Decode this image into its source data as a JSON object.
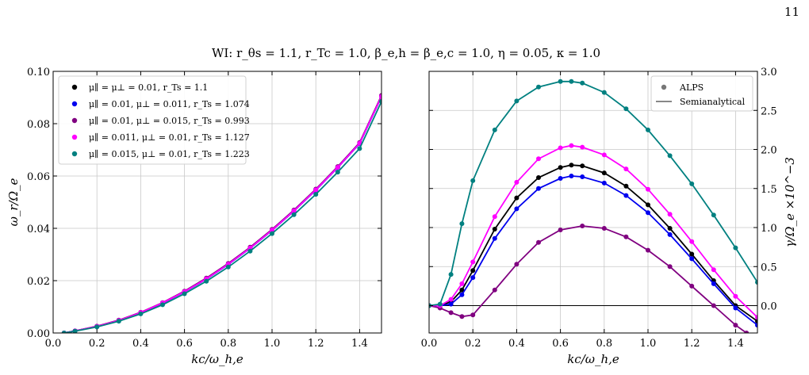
{
  "page_number": "11",
  "figure_title": "WI: r_θs = 1.1, r_Tc = 1.0, β_e,h = β_e,c = 1.0, η = 0.05, κ = 1.0",
  "colors": {
    "black": "#000000",
    "blue": "#0000ee",
    "purple": "#800080",
    "magenta": "#ff00ff",
    "teal": "#008080",
    "grid": "#c8c8c8",
    "axis": "#000000"
  },
  "chart_data": [
    {
      "type": "line",
      "panel": "left",
      "xlabel": "kc/ω_h,e",
      "ylabel": "ω_r/Ω_e",
      "xlim": [
        0.0,
        1.5
      ],
      "ylim": [
        0.0,
        0.1
      ],
      "xticks": [
        0.0,
        0.2,
        0.4,
        0.6,
        0.8,
        1.0,
        1.2,
        1.4
      ],
      "xtick_labels": [
        "0.0",
        "0.2",
        "0.4",
        "0.6",
        "0.8",
        "1.0",
        "1.2",
        "1.4"
      ],
      "yticks": [
        0.0,
        0.02,
        0.04,
        0.06,
        0.08,
        0.1
      ],
      "ytick_labels": [
        "0.00",
        "0.02",
        "0.04",
        "0.06",
        "0.08",
        "0.10"
      ],
      "grid": true,
      "legend_position": "top-left",
      "series": [
        {
          "name": "μ∥ = μ⊥ = 0.01, r_Ts = 1.1",
          "color": "#000000",
          "x": [
            0.05,
            0.1,
            0.2,
            0.3,
            0.4,
            0.5,
            0.6,
            0.7,
            0.8,
            0.9,
            1.0,
            1.1,
            1.2,
            1.3,
            1.4,
            1.5
          ],
          "y": [
            0.0,
            0.0008,
            0.0025,
            0.0048,
            0.0078,
            0.0115,
            0.0158,
            0.0207,
            0.0263,
            0.0325,
            0.0393,
            0.0467,
            0.0547,
            0.0633,
            0.0725,
            0.0905
          ]
        },
        {
          "name": "μ∥ = 0.01, μ⊥ = 0.011, r_Ts = 1.074",
          "color": "#0000ee",
          "x": [
            0.05,
            0.1,
            0.2,
            0.3,
            0.4,
            0.5,
            0.6,
            0.7,
            0.8,
            0.9,
            1.0,
            1.1,
            1.2,
            1.3,
            1.4,
            1.5
          ],
          "y": [
            0.0,
            0.0008,
            0.0025,
            0.0047,
            0.0077,
            0.0114,
            0.0157,
            0.0206,
            0.0262,
            0.0324,
            0.0392,
            0.0466,
            0.0546,
            0.0632,
            0.0724,
            0.0903
          ]
        },
        {
          "name": "μ∥ = 0.01, μ⊥ = 0.015, r_Ts = 0.993",
          "color": "#800080",
          "x": [
            0.05,
            0.1,
            0.2,
            0.3,
            0.4,
            0.5,
            0.6,
            0.7,
            0.8,
            0.9,
            1.0,
            1.1,
            1.2,
            1.3,
            1.4,
            1.5
          ],
          "y": [
            0.0,
            0.0008,
            0.0026,
            0.0049,
            0.0079,
            0.0116,
            0.016,
            0.021,
            0.0266,
            0.0328,
            0.0396,
            0.047,
            0.055,
            0.0636,
            0.0728,
            0.0908
          ]
        },
        {
          "name": "μ∥ = 0.011, μ⊥ = 0.01, r_Ts = 1.127",
          "color": "#ff00ff",
          "x": [
            0.05,
            0.1,
            0.2,
            0.3,
            0.4,
            0.5,
            0.6,
            0.7,
            0.8,
            0.9,
            1.0,
            1.1,
            1.2,
            1.3,
            1.4,
            1.5
          ],
          "y": [
            0.0,
            0.0008,
            0.0025,
            0.0048,
            0.0078,
            0.0115,
            0.0158,
            0.0207,
            0.0263,
            0.0325,
            0.0393,
            0.0467,
            0.0547,
            0.0633,
            0.0725,
            0.0904
          ]
        },
        {
          "name": "μ∥ = 0.015, μ⊥ = 0.01, r_Ts = 1.223",
          "color": "#008080",
          "x": [
            0.05,
            0.1,
            0.2,
            0.3,
            0.4,
            0.5,
            0.6,
            0.7,
            0.8,
            0.9,
            1.0,
            1.1,
            1.2,
            1.3,
            1.4,
            1.5
          ],
          "y": [
            0.0,
            0.0007,
            0.0023,
            0.0045,
            0.0073,
            0.0108,
            0.015,
            0.0198,
            0.0252,
            0.0313,
            0.038,
            0.0452,
            0.053,
            0.0615,
            0.0705,
            0.0885
          ]
        }
      ]
    },
    {
      "type": "line",
      "panel": "right",
      "xlabel": "kc/ω_h,e",
      "ylabel": "γ/Ω_e ×10^−3",
      "xlim": [
        0.0,
        1.5
      ],
      "ylim": [
        -0.35,
        3.0
      ],
      "xticks": [
        0.0,
        0.2,
        0.4,
        0.6,
        0.8,
        1.0,
        1.2,
        1.4
      ],
      "xtick_labels": [
        "0.0",
        "0.2",
        "0.4",
        "0.6",
        "0.8",
        "1.0",
        "1.2",
        "1.4"
      ],
      "yticks": [
        0.0,
        0.5,
        1.0,
        1.5,
        2.0,
        2.5,
        3.0
      ],
      "ytick_labels": [
        "0.0",
        "0.5",
        "1.0",
        "1.5",
        "2.0",
        "2.5",
        "3.0"
      ],
      "grid": true,
      "zero_line": true,
      "legend_position": "top-right",
      "legend": [
        "ALPS",
        "Semianalytical"
      ],
      "series": [
        {
          "name": "μ∥ = μ⊥ = 0.01, r_Ts = 1.1",
          "color": "#000000",
          "x": [
            0.0,
            0.05,
            0.1,
            0.15,
            0.2,
            0.3,
            0.4,
            0.5,
            0.6,
            0.65,
            0.7,
            0.8,
            0.9,
            1.0,
            1.1,
            1.2,
            1.3,
            1.4,
            1.5
          ],
          "y": [
            0.0,
            0.0,
            0.05,
            0.2,
            0.45,
            0.98,
            1.38,
            1.64,
            1.77,
            1.8,
            1.79,
            1.7,
            1.53,
            1.29,
            0.99,
            0.66,
            0.32,
            0.0,
            -0.2
          ]
        },
        {
          "name": "μ∥ = 0.01, μ⊥ = 0.011, r_Ts = 1.074",
          "color": "#0000ee",
          "x": [
            0.0,
            0.05,
            0.1,
            0.15,
            0.2,
            0.3,
            0.4,
            0.5,
            0.6,
            0.65,
            0.7,
            0.8,
            0.9,
            1.0,
            1.1,
            1.2,
            1.3,
            1.4,
            1.5
          ],
          "y": [
            0.0,
            0.0,
            0.02,
            0.14,
            0.36,
            0.86,
            1.24,
            1.5,
            1.63,
            1.66,
            1.65,
            1.57,
            1.41,
            1.19,
            0.91,
            0.6,
            0.28,
            -0.03,
            -0.25
          ]
        },
        {
          "name": "μ∥ = 0.01, μ⊥ = 0.015, r_Ts = 0.993",
          "color": "#800080",
          "x": [
            0.0,
            0.05,
            0.1,
            0.15,
            0.2,
            0.3,
            0.4,
            0.5,
            0.6,
            0.7,
            0.8,
            0.9,
            1.0,
            1.1,
            1.2,
            1.3,
            1.4,
            1.45
          ],
          "y": [
            0.0,
            -0.03,
            -0.09,
            -0.14,
            -0.12,
            0.2,
            0.53,
            0.81,
            0.97,
            1.02,
            0.99,
            0.88,
            0.71,
            0.5,
            0.25,
            0.0,
            -0.25,
            -0.35
          ]
        },
        {
          "name": "μ∥ = 0.011, μ⊥ = 0.01, r_Ts = 1.127",
          "color": "#ff00ff",
          "x": [
            0.0,
            0.05,
            0.1,
            0.15,
            0.2,
            0.3,
            0.4,
            0.5,
            0.6,
            0.65,
            0.7,
            0.8,
            0.9,
            1.0,
            1.1,
            1.2,
            1.3,
            1.4,
            1.5
          ],
          "y": [
            0.0,
            0.0,
            0.08,
            0.28,
            0.56,
            1.14,
            1.58,
            1.88,
            2.02,
            2.05,
            2.03,
            1.93,
            1.75,
            1.49,
            1.17,
            0.82,
            0.46,
            0.12,
            -0.15
          ]
        },
        {
          "name": "μ∥ = 0.015, μ⊥ = 0.01, r_Ts = 1.223",
          "color": "#008080",
          "x": [
            0.0,
            0.05,
            0.1,
            0.15,
            0.2,
            0.3,
            0.4,
            0.5,
            0.6,
            0.65,
            0.7,
            0.8,
            0.9,
            1.0,
            1.1,
            1.2,
            1.3,
            1.4,
            1.5
          ],
          "y": [
            0.0,
            0.02,
            0.4,
            1.05,
            1.6,
            2.25,
            2.62,
            2.8,
            2.87,
            2.87,
            2.85,
            2.73,
            2.52,
            2.25,
            1.92,
            1.56,
            1.16,
            0.74,
            0.3
          ]
        }
      ]
    }
  ]
}
